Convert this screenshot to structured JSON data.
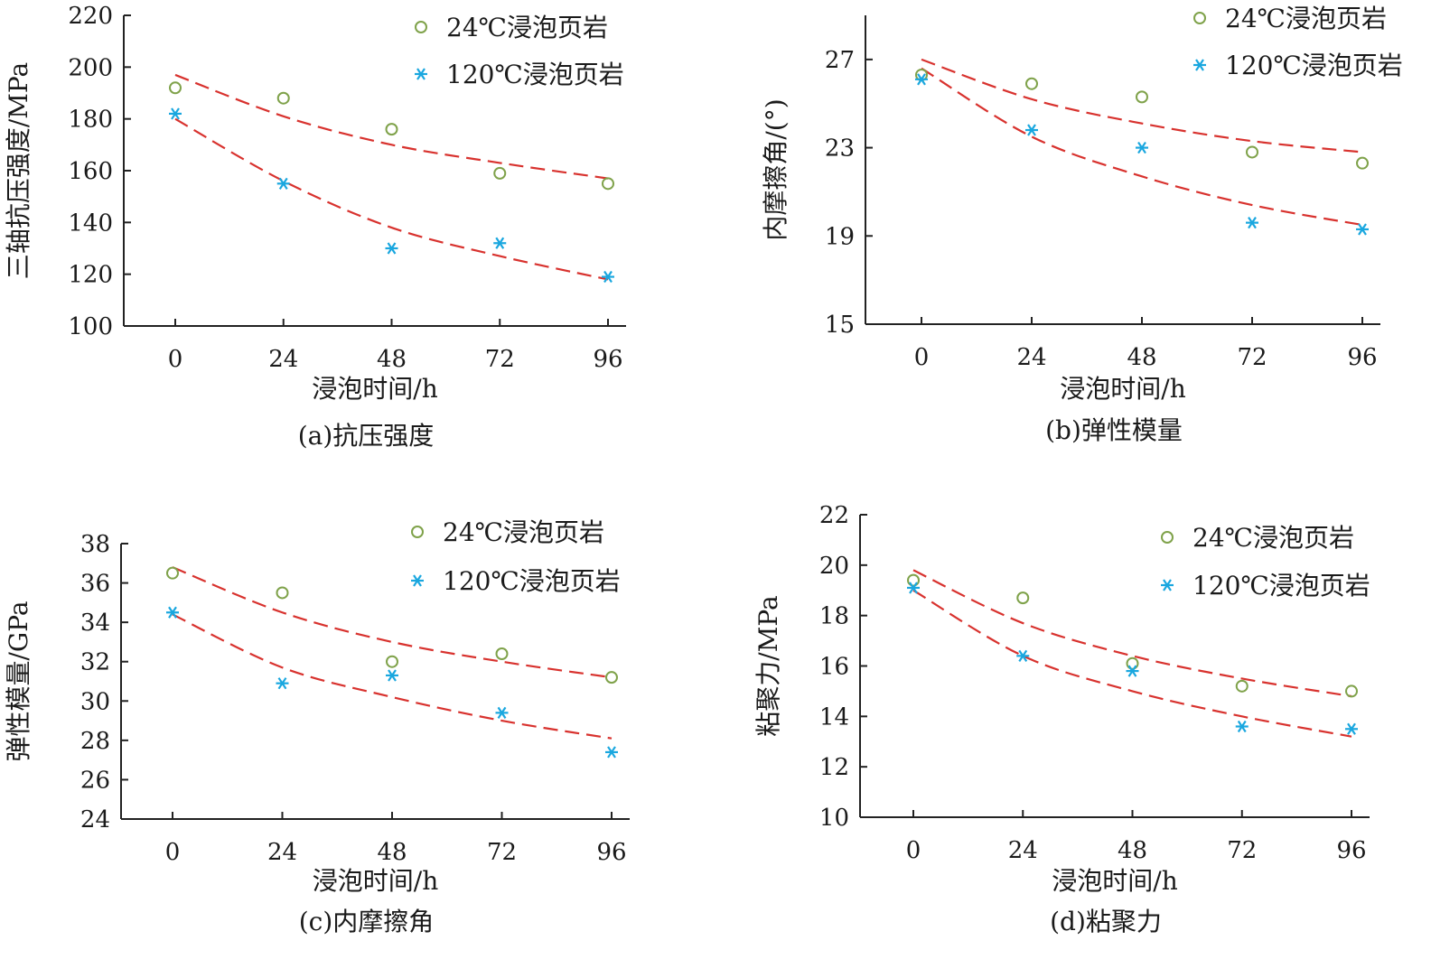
{
  "colors": {
    "green": "#7FA24A",
    "blue": "#1AA7DF",
    "red": "#D8322E",
    "axis": "#222222"
  },
  "legend": {
    "series_a": "24℃浸泡页岩",
    "series_b": "120℃浸泡页岩"
  },
  "chart_data": [
    {
      "type": "scatter",
      "caption": "(a)抗压强度",
      "xlabel": "浸泡时间/h",
      "ylabel": "三轴抗压强度/MPa",
      "x": [
        0,
        24,
        48,
        72,
        96
      ],
      "xticks": [
        "0",
        "24",
        "48",
        "72",
        "96"
      ],
      "ylim": [
        100,
        220
      ],
      "yticks": [
        "100",
        "120",
        "140",
        "160",
        "180",
        "200",
        "220"
      ],
      "series": [
        {
          "name": "24℃浸泡页岩",
          "marker": "circle",
          "values": [
            192,
            188,
            176,
            159,
            155
          ]
        },
        {
          "name": "120℃浸泡页岩",
          "marker": "asterisk",
          "values": [
            182,
            155,
            130,
            132,
            119
          ]
        }
      ],
      "trend": [
        {
          "values": [
            197,
            181,
            170,
            163,
            157
          ]
        },
        {
          "values": [
            180,
            156,
            138,
            127,
            118
          ]
        }
      ]
    },
    {
      "type": "scatter",
      "caption": "(b)弹性模量",
      "xlabel": "浸泡时间/h",
      "ylabel": "内摩擦角/(°)",
      "x": [
        0,
        24,
        48,
        72,
        96
      ],
      "xticks": [
        "0",
        "24",
        "48",
        "72",
        "96"
      ],
      "ylim": [
        15,
        29
      ],
      "yticks": [
        "15",
        "19",
        "23",
        "27"
      ],
      "series": [
        {
          "name": "24℃浸泡页岩",
          "marker": "circle",
          "values": [
            26.3,
            25.9,
            25.3,
            22.8,
            22.3
          ]
        },
        {
          "name": "120℃浸泡页岩",
          "marker": "asterisk",
          "values": [
            26.1,
            23.8,
            23.0,
            19.6,
            19.3
          ]
        }
      ],
      "trend": [
        {
          "values": [
            27.0,
            25.2,
            24.1,
            23.3,
            22.8
          ]
        },
        {
          "values": [
            26.6,
            23.5,
            21.7,
            20.4,
            19.5
          ]
        }
      ]
    },
    {
      "type": "scatter",
      "caption": "(c)内摩擦角",
      "xlabel": "浸泡时间/h",
      "ylabel": "弹性模量/GPa",
      "x": [
        0,
        24,
        48,
        72,
        96
      ],
      "xticks": [
        "0",
        "24",
        "48",
        "72",
        "96"
      ],
      "ylim": [
        24,
        38
      ],
      "yticks": [
        "24",
        "26",
        "28",
        "30",
        "32",
        "34",
        "36",
        "38"
      ],
      "series": [
        {
          "name": "24℃浸泡页岩",
          "marker": "circle",
          "values": [
            36.5,
            35.5,
            32.0,
            32.4,
            31.2
          ]
        },
        {
          "name": "120℃浸泡页岩",
          "marker": "asterisk",
          "values": [
            34.5,
            30.9,
            31.3,
            29.4,
            27.4
          ]
        }
      ],
      "trend": [
        {
          "values": [
            36.8,
            34.5,
            33.0,
            32.0,
            31.2
          ]
        },
        {
          "values": [
            34.4,
            31.7,
            30.2,
            29.0,
            28.1
          ]
        }
      ]
    },
    {
      "type": "scatter",
      "caption": "(d)粘聚力",
      "xlabel": "浸泡时间/h",
      "ylabel": "粘聚力/MPa",
      "x": [
        0,
        24,
        48,
        72,
        96
      ],
      "xticks": [
        "0",
        "24",
        "48",
        "72",
        "96"
      ],
      "ylim": [
        10,
        22
      ],
      "yticks": [
        "10",
        "12",
        "14",
        "16",
        "18",
        "20",
        "22"
      ],
      "series": [
        {
          "name": "24℃浸泡页岩",
          "marker": "circle",
          "values": [
            19.4,
            18.7,
            16.1,
            15.2,
            15.0
          ]
        },
        {
          "name": "120℃浸泡页岩",
          "marker": "asterisk",
          "values": [
            19.1,
            16.4,
            15.8,
            13.6,
            13.5
          ]
        }
      ],
      "trend": [
        {
          "values": [
            19.8,
            17.7,
            16.4,
            15.5,
            14.8
          ]
        },
        {
          "values": [
            19.0,
            16.4,
            15.0,
            14.0,
            13.2
          ]
        }
      ]
    }
  ]
}
